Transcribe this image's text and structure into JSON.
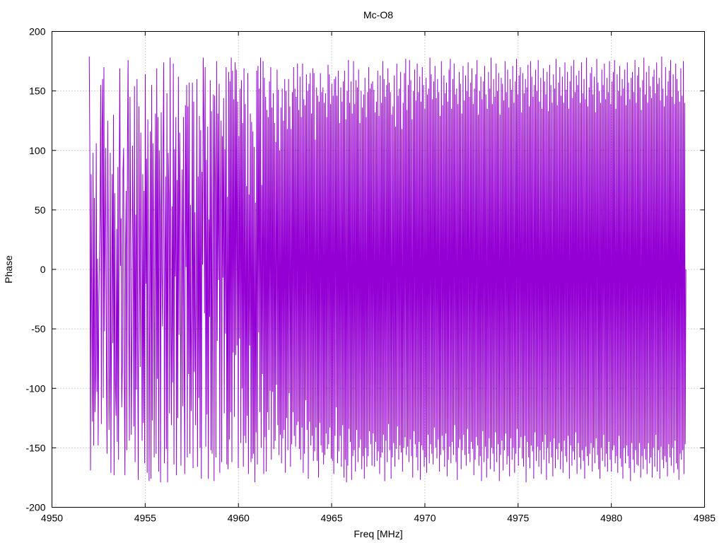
{
  "chart_data": {
    "type": "line",
    "title": "Mc-O8",
    "xlabel": "Freq [MHz]",
    "ylabel": "Phase",
    "xlim": [
      4950,
      4985
    ],
    "ylim": [
      -200,
      200
    ],
    "xticks": [
      4950,
      4955,
      4960,
      4965,
      4970,
      4975,
      4980,
      4985
    ],
    "yticks": [
      -200,
      -150,
      -100,
      -50,
      0,
      50,
      100,
      150,
      200
    ],
    "grid": true,
    "series": [
      {
        "color": "#9400d3",
        "x_start": 4952.0,
        "x_end": 4984.0,
        "x_step": 0.032,
        "values": [
          179,
          95,
          -169,
          80,
          -38,
          -128,
          98,
          -148,
          60,
          -120,
          -88,
          106,
          -103,
          9,
          -148,
          -34,
          10,
          50,
          155,
          -130,
          116,
          160,
          -108,
          170,
          -52,
          36,
          102,
          -85,
          -155,
          125,
          28,
          -135,
          -87,
          98,
          -171,
          -30,
          80,
          -62,
          130,
          -173,
          64,
          -95,
          -123,
          34,
          -145,
          86,
          -160,
          75,
          169,
          3,
          43,
          -116,
          -82,
          84,
          102,
          -80,
          -173,
          19,
          66,
          -152,
          106,
          176,
          -45,
          -144,
          145,
          25,
          -139,
          -54,
          104,
          32,
          -132,
          154,
          -162,
          46,
          -101,
          160,
          -67,
          -177,
          137,
          11,
          -82,
          115,
          1,
          -144,
          80,
          -129,
          66,
          -163,
          164,
          -12,
          93,
          -171,
          126,
          14,
          -178,
          -8,
          116,
          -176,
          155,
          -127,
          106,
          43,
          -158,
          23,
          131,
          -155,
          169,
          -92,
          128,
          -170,
          100,
          51,
          -179,
          132,
          -3,
          -48,
          103,
          174,
          -163,
          6,
          78,
          -151,
          148,
          -179,
          98,
          63,
          -121,
          178,
          -46,
          -131,
          53,
          -95,
          173,
          -164,
          101,
          -6,
          128,
          -173,
          75,
          -125,
          162,
          -55,
          115,
          51,
          -165,
          15,
          84,
          -115,
          128,
          -68,
          -172,
          138,
          2,
          155,
          -158,
          137,
          -88,
          157,
          -155,
          54,
          -119,
          -37,
          157,
          -167,
          141,
          -86,
          48,
          -131,
          -27,
          160,
          -166,
          78,
          -108,
          129,
          -150,
          117,
          -176,
          82,
          4,
          178,
          121,
          -37,
          170,
          -149,
          92,
          -122,
          120,
          -176,
          42,
          -40,
          159,
          -152,
          133,
          -155,
          29,
          147,
          -178,
          146,
          71,
          -158,
          175,
          -60,
          131,
          -9,
          156,
          -171,
          55,
          125,
          -162,
          112,
          -7,
          144,
          -121,
          101,
          -54,
          170,
          -164,
          61,
          -168,
          166,
          -143,
          158,
          -120,
          178,
          -162,
          167,
          -70,
          143,
          -124,
          174,
          -72,
          168,
          -64,
          141,
          -167,
          112,
          -58,
          152,
          -146,
          159,
          -100,
          123,
          -166,
          169,
          -140,
          139,
          -146,
          70,
          -123,
          165,
          -172,
          63,
          -64,
          131,
          -162,
          124,
          -159,
          116,
          -155,
          103,
          -179,
          56,
          -137,
          167,
          -164,
          171,
          -53,
          152,
          -120,
          178,
          -150,
          71,
          -88,
          175,
          -172,
          161,
          -141,
          145,
          -170,
          134,
          -120,
          128,
          -135,
          158,
          -102,
          170,
          -160,
          136,
          -103,
          148,
          -151,
          123,
          -144,
          107,
          -97,
          168,
          -131,
          151,
          -156,
          100,
          -139,
          136,
          -163,
          152,
          -142,
          125,
          -135,
          160,
          -171,
          150,
          -125,
          118,
          -152,
          160,
          -104,
          137,
          -166,
          118,
          -147,
          149,
          -120,
          170,
          -140,
          152,
          -149,
          145,
          -131,
          173,
          -128,
          134,
          -151,
          162,
          -160,
          128,
          -133,
          173,
          -171,
          143,
          -155,
          138,
          -110,
          164,
          -135,
          150,
          -176,
          156,
          -128,
          165,
          -148,
          131,
          -140,
          169,
          -161,
          165,
          -153,
          109,
          -133,
          153,
          -161,
          146,
          -175,
          141,
          -129,
          165,
          -148,
          149,
          -154,
          153,
          -164,
          140,
          -156,
          148,
          -138,
          128,
          -151,
          172,
          -147,
          164,
          -133,
          139,
          -159,
          156,
          -161,
          146,
          -172,
          160,
          -140,
          162,
          -116,
          146,
          -163,
          167,
          -153,
          123,
          -140,
          153,
          -166,
          141,
          -131,
          158,
          -175,
          167,
          -160,
          126,
          -179,
          150,
          -165,
          176,
          -134,
          140,
          -145,
          158,
          -177,
          131,
          -157,
          175,
          -152,
          139,
          -170,
          159,
          -135,
          153,
          -162,
          168,
          -150,
          123,
          -143,
          150,
          -168,
          136,
          -157,
          147,
          -176,
          161,
          -150,
          128,
          -166,
          149,
          -157,
          170,
          -136,
          152,
          -147,
          156,
          -165,
          158,
          -138,
          151,
          -166,
          132,
          -145,
          141,
          -161,
          167,
          -153,
          129,
          -172,
          163,
          -158,
          140,
          -154,
          175,
          -139,
          160,
          -178,
          145,
          -144,
          155,
          -162,
          169,
          -130,
          157,
          -152,
          149,
          -176,
          130,
          -158,
          137,
          -146,
          163,
          -166,
          120,
          -151,
          173,
          -132,
          146,
          -160,
          152,
          -148,
          166,
          -154,
          118,
          -170,
          140,
          -150,
          165,
          -141,
          177,
          -156,
          134,
          -149,
          155,
          -162,
          176,
          -143,
          159,
          -157,
          126,
          -175,
          150,
          -136,
          168,
          -147,
          142,
          -158,
          173,
          -169,
          149,
          -145,
          162,
          -177,
          141,
          -148,
          170,
          -152,
          155,
          -166,
          135,
          -158,
          161,
          -171,
          147,
          -139,
          152,
          -163,
          178,
          -147,
          164,
          -155,
          143,
          -164,
          158,
          -133,
          171,
          -150,
          144,
          -159,
          160,
          -143,
          149,
          -170,
          129,
          -156,
          175,
          -140,
          138,
          -152,
          163,
          -166,
          148,
          -138,
          157,
          -174,
          141,
          -160,
          168,
          -149,
          177,
          -163,
          135,
          -145,
          160,
          -156,
          173,
          -131,
          147,
          -162,
          152,
          -177,
          139,
          -150,
          166,
          -143,
          156,
          -168,
          131,
          -152,
          171,
          -139,
          142,
          -156,
          163,
          -165,
          150,
          -134,
          174,
          -155,
          145,
          -162,
          157,
          -145,
          169,
          -151,
          139,
          -173,
          152,
          -160,
          164,
          -141,
          176,
          -148,
          130,
          -165,
          150,
          -157,
          162,
          -178,
          143,
          -136,
          158,
          -162,
          171,
          -149,
          147,
          -175,
          135,
          -159,
          166,
          -142,
          152,
          -168,
          178,
          -150,
          139,
          -155,
          160,
          -170,
          145,
          -137,
          173,
          -162,
          150,
          -147,
          165,
          -178,
          130,
          -156,
          161,
          -144,
          156,
          -169,
          142,
          -152,
          175,
          -138,
          149,
          -164,
          168,
          -157,
          136,
          -174,
          160,
          -142,
          151,
          -160,
          171,
          -150,
          140,
          -171,
          158,
          -155,
          177,
          -134,
          147,
          -165,
          163,
          -150,
          170,
          -141,
          132,
          -159,
          165,
          -166,
          148,
          -140,
          160,
          -179,
          153,
          -145,
          172,
          -158,
          137,
          -167,
          175,
          -148,
          162,
          -153,
          145,
          -176,
          155,
          -137,
          168,
          -161,
          150,
          -149,
          176,
          -166,
          141,
          -152,
          161,
          -172,
          135,
          -145,
          169,
          -160,
          158,
          -139,
          147,
          -177,
          166,
          -150,
          133,
          -163,
          172,
          -145,
          155,
          -158,
          140,
          -174,
          164,
          -142,
          152,
          -167,
          177,
          -151,
          138,
          -160,
          157,
          -146,
          170,
          -168,
          146,
          -153,
          162,
          -171,
          140,
          -144,
          174,
          -157,
          151,
          -162,
          166,
          -140,
          135,
          -176,
          158,
          -148,
          171,
          -165,
          144,
          -153,
          176,
          -160,
          149,
          -137,
          163,
          -172,
          155,
          -146,
          167,
          -158,
          140,
          -168,
          174,
          -152,
          148,
          -161,
          160,
          -176,
          143,
          -149,
          178,
          -157,
          137,
          -165,
          153,
          -155,
          165,
          -146,
          170,
          -170,
          147,
          -150,
          162,
          -163,
          132,
          -142,
          177,
          -156,
          157,
          -168,
          150,
          -176,
          140,
          -150,
          168,
          -161,
          155,
          -139,
          173,
          -166,
          143,
          -155,
          161,
          -170,
          149,
          -145,
          175,
          -160,
          139,
          -170,
          158,
          -152,
          166,
          -148,
          176,
          -163,
          135,
          -157,
          164,
          -171,
          150,
          -140,
          171,
          -159,
          146,
          -166,
          160,
          -176,
          152,
          -150,
          168,
          -163,
          138,
          -148,
          174,
          -157,
          157,
          -167,
          143,
          -178,
          161,
          -146,
          166,
          -160,
          149,
          -171,
          176,
          -152,
          140,
          -164,
          163,
          -165,
          170,
          -146,
          153,
          -175,
          134,
          -157,
          159,
          -168,
          178,
          -151,
          147,
          -160,
          166,
          -172,
          140,
          -146,
          171,
          -163,
          154,
          -158,
          144,
          -175,
          162,
          -150,
          168,
          -166,
          148,
          -139,
          174,
          -170,
          156,
          -152,
          161,
          -176,
          142,
          -149,
          179,
          -160,
          152,
          -167,
          137,
          -157,
          170,
          -162,
          146,
          -174,
          158,
          -147,
          167,
          -158,
          176,
          -165,
          145,
          -150,
          164,
          -171,
          139,
          -144,
          173,
          -163,
          160,
          -168,
          150,
          -177,
          141,
          -155,
          169,
          -160,
          146,
          -152,
          175,
          -172,
          140,
          -147,
          0
        ]
      }
    ]
  }
}
